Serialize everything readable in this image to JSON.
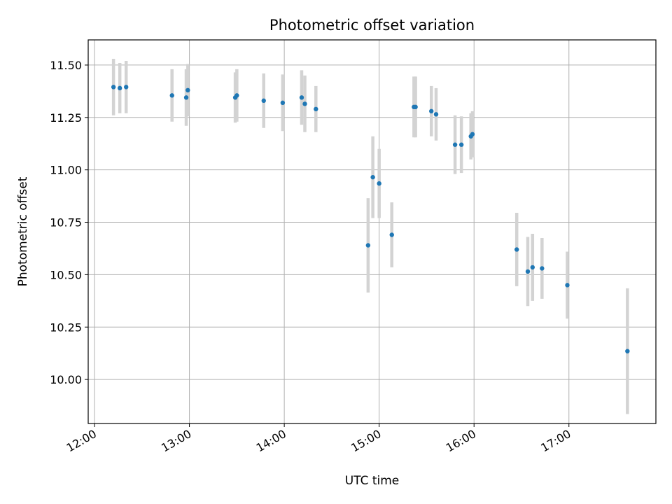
{
  "chart_data": {
    "type": "scatter",
    "title": "Photometric offset variation",
    "xlabel": "UTC time",
    "ylabel": "Photometric offset",
    "x_ticks": [
      "12:00",
      "13:00",
      "14:00",
      "15:00",
      "16:00",
      "17:00"
    ],
    "x_tick_values": [
      0,
      60,
      120,
      180,
      240,
      300
    ],
    "y_ticks": [
      "10.00",
      "10.25",
      "10.50",
      "10.75",
      "11.00",
      "11.25",
      "11.50"
    ],
    "y_tick_values": [
      10.0,
      10.25,
      10.5,
      10.75,
      11.0,
      11.25,
      11.5
    ],
    "xlim": [
      "11:56",
      "17:55"
    ],
    "ylim": [
      9.79,
      11.62
    ],
    "grid": true,
    "colors": {
      "point": "#1f77b4",
      "errorbar": "#d3d3d3",
      "grid": "#b0b0b0"
    },
    "series": [
      {
        "x": [
          "12:12",
          "12:16",
          "12:20",
          "12:49",
          "12:58",
          "12:59",
          "13:29",
          "13:30",
          "13:47",
          "13:59",
          "14:11",
          "14:13",
          "14:20",
          "14:53",
          "14:56",
          "15:00",
          "15:08",
          "15:22",
          "15:23",
          "15:33",
          "15:36",
          "15:48",
          "15:52",
          "15:58",
          "15:59",
          "16:27",
          "16:34",
          "16:37",
          "16:43",
          "16:59",
          "17:37"
        ],
        "y": [
          11.395,
          11.39,
          11.395,
          11.355,
          11.345,
          11.38,
          11.345,
          11.355,
          11.33,
          11.32,
          11.345,
          11.315,
          11.29,
          10.64,
          10.965,
          10.935,
          10.69,
          11.3,
          11.3,
          11.28,
          11.265,
          11.12,
          11.12,
          11.16,
          11.17,
          10.62,
          10.515,
          10.535,
          10.53,
          10.45,
          10.135
        ],
        "yerr": [
          0.135,
          0.12,
          0.125,
          0.125,
          0.135,
          0.125,
          0.12,
          0.125,
          0.13,
          0.135,
          0.13,
          0.135,
          0.11,
          0.225,
          0.195,
          0.165,
          0.155,
          0.145,
          0.145,
          0.12,
          0.125,
          0.14,
          0.135,
          0.11,
          0.11,
          0.175,
          0.165,
          0.16,
          0.145,
          0.16,
          0.3
        ]
      }
    ]
  }
}
